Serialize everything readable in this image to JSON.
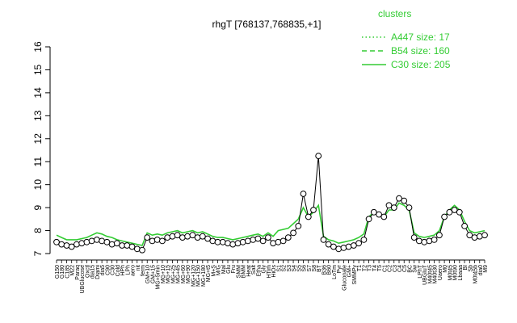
{
  "chart_data": {
    "type": "line",
    "title": "rhgT [768137,768835,+1]",
    "xlabel": "",
    "ylabel": "",
    "ylim": [
      7,
      16
    ],
    "yticks": [
      7,
      8,
      9,
      10,
      11,
      12,
      13,
      14,
      15,
      16
    ],
    "grid": false,
    "legend": {
      "title": "clusters",
      "position": "top-right",
      "color": "#33cc33",
      "entries": [
        {
          "label": "A447 size: 17",
          "style": "dotted"
        },
        {
          "label": "B54 size: 160",
          "style": "dashed"
        },
        {
          "label": "C30 size: 205",
          "style": "solid"
        }
      ]
    },
    "series_colors": {
      "profile": "#000000",
      "cluster": "#33cc33"
    },
    "xtick_labels": [
      "G150",
      "G180",
      "C185",
      "M22",
      "Paraq",
      "UBGlucose",
      "Oxctl",
      "dia15",
      "Diami",
      "dia5",
      "C90",
      "C30",
      "Cold",
      "HPh",
      "LPh",
      "aero",
      "nit",
      "ferm",
      "GM+10",
      "GM+15",
      "MG+5min",
      "MG+10",
      "MG+15",
      "MG+25",
      "MG+45",
      "MG+60",
      "MG+90",
      "MG+120",
      "MG+150",
      "MG+180",
      "MG+t5",
      "M+S",
      "M/G",
      "Mal",
      "Glu",
      "Fru",
      "SMM",
      "BMM",
      "Heat",
      "Salt",
      "Etha",
      "Gly",
      "HTim",
      "HiOs",
      "S1",
      "S2",
      "S3",
      "S4",
      "S5",
      "S6",
      "S7",
      "S8",
      "BT",
      "B36",
      "B60",
      "LoTm",
      "Pyr",
      "Gluconate",
      "GM+",
      "SMMPy",
      "T1",
      "T2",
      "T3",
      "T4",
      "T5",
      "C1",
      "C2",
      "C3",
      "C4",
      "C5",
      "BC",
      "Sw",
      "LPhT",
      "UBGluT",
      "M40t45",
      "M40t30",
      "Uaero",
      "M0",
      "M0t45",
      "M0t90",
      "Lbaaa",
      "BI",
      "Sb",
      "M0t45b",
      "dia0",
      "M9"
    ],
    "values": [
      7.5,
      7.4,
      7.35,
      7.3,
      7.4,
      7.45,
      7.5,
      7.55,
      7.6,
      7.55,
      7.5,
      7.4,
      7.45,
      7.35,
      7.35,
      7.3,
      7.2,
      7.15,
      7.7,
      7.55,
      7.6,
      7.55,
      7.7,
      7.75,
      7.8,
      7.7,
      7.75,
      7.8,
      7.7,
      7.75,
      7.65,
      7.55,
      7.5,
      7.5,
      7.45,
      7.4,
      7.45,
      7.5,
      7.55,
      7.6,
      7.65,
      7.55,
      7.7,
      7.45,
      7.5,
      7.55,
      7.7,
      7.9,
      8.2,
      9.6,
      8.6,
      8.9,
      11.25,
      7.6,
      7.4,
      7.3,
      7.2,
      7.25,
      7.3,
      7.35,
      7.45,
      7.6,
      8.5,
      8.8,
      8.7,
      8.6,
      9.1,
      9.0,
      9.4,
      9.3,
      9.0,
      7.7,
      7.55,
      7.5,
      7.55,
      7.6,
      7.8,
      8.6,
      8.8,
      8.9,
      8.8,
      8.2,
      7.8,
      7.7,
      7.75,
      7.8
    ],
    "cluster_values": [
      7.8,
      7.7,
      7.6,
      7.6,
      7.6,
      7.65,
      7.7,
      7.8,
      7.9,
      7.85,
      7.75,
      7.7,
      7.6,
      7.55,
      7.5,
      7.45,
      7.4,
      7.35,
      7.9,
      7.8,
      7.85,
      7.8,
      7.9,
      7.95,
      8.0,
      7.9,
      7.95,
      8.0,
      7.9,
      7.95,
      7.85,
      7.75,
      7.7,
      7.7,
      7.65,
      7.6,
      7.65,
      7.7,
      7.75,
      7.8,
      7.85,
      7.75,
      7.9,
      7.75,
      8.0,
      8.05,
      8.1,
      8.3,
      8.5,
      9.0,
      8.6,
      8.8,
      9.1,
      7.75,
      7.6,
      7.55,
      7.45,
      7.5,
      7.55,
      7.6,
      7.7,
      7.85,
      8.6,
      8.8,
      8.7,
      8.6,
      8.9,
      8.9,
      9.2,
      9.1,
      8.9,
      7.9,
      7.75,
      7.7,
      7.75,
      7.8,
      8.0,
      8.6,
      8.9,
      9.1,
      8.9,
      8.4,
      8.0,
      7.9,
      7.95,
      8.0
    ]
  }
}
